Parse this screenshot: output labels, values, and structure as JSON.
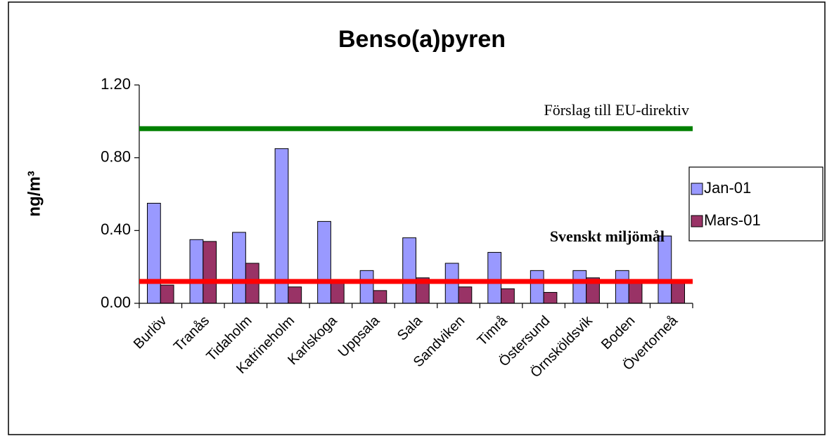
{
  "chart_data": {
    "type": "bar",
    "title": "Benso(a)pyren",
    "y_label": "ng/m³",
    "categories": [
      "Burlöv",
      "Tranås",
      "Tidaholm",
      "Katrineholm",
      "Karlskoga",
      "Uppsala",
      "Sala",
      "Sandviken",
      "Timrå",
      "Östersund",
      "Örnsköldsvik",
      "Boden",
      "Övertorneå"
    ],
    "series": [
      {
        "name": "Jan-01",
        "color": "#9999ff",
        "values": [
          0.55,
          0.35,
          0.39,
          0.85,
          0.45,
          0.18,
          0.36,
          0.22,
          0.28,
          0.18,
          0.18,
          0.18,
          0.37
        ]
      },
      {
        "name": "Mars-01",
        "color": "#993366",
        "values": [
          0.1,
          0.34,
          0.22,
          0.09,
          0.11,
          0.07,
          0.14,
          0.09,
          0.08,
          0.06,
          0.14,
          0.12,
          0.12
        ]
      }
    ],
    "reference_lines": [
      {
        "label": "Förslag till EU-direktiv",
        "value": 0.96,
        "color": "#008000"
      },
      {
        "label": "Svenskt miljömål",
        "value": 0.12,
        "color": "#ff0000"
      }
    ],
    "ylim": [
      0,
      1.2
    ],
    "yticks": [
      {
        "value": 0,
        "label": "0.00"
      },
      {
        "value": 0.4,
        "label": "0.40"
      },
      {
        "value": 0.8,
        "label": "0.80"
      },
      {
        "value": 1.2,
        "label": "1.20"
      }
    ],
    "legend": "right"
  }
}
